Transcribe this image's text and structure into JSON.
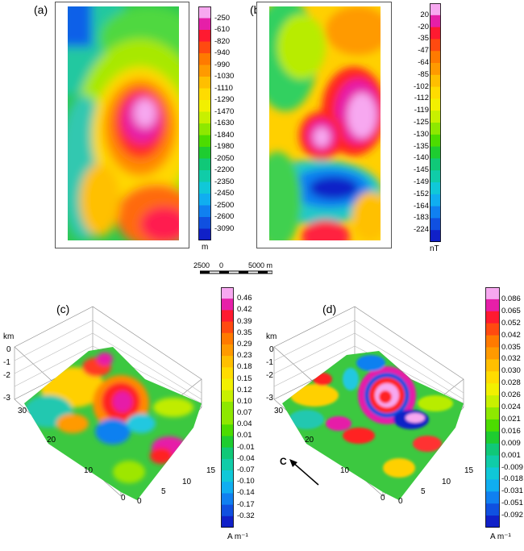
{
  "panels": {
    "a": {
      "label": "(a)",
      "unit": "m",
      "ticks": [
        "-250",
        "-610",
        "-820",
        "-940",
        "-990",
        "-1030",
        "-1110",
        "-1290",
        "-1470",
        "-1630",
        "-1840",
        "-1980",
        "-2050",
        "-2200",
        "-2350",
        "-2450",
        "-2500",
        "-2600",
        "-3090"
      ]
    },
    "b": {
      "label": "(b)",
      "unit": "nT",
      "ticks": [
        "20",
        "-20",
        "-35",
        "-47",
        "-64",
        "-85",
        "-102",
        "-112",
        "-119",
        "-125",
        "-130",
        "-135",
        "-140",
        "-145",
        "-149",
        "-152",
        "-164",
        "-183",
        "-224"
      ]
    },
    "c": {
      "label": "(c)",
      "unit": "A m⁻¹",
      "ticks": [
        "0.46",
        "0.42",
        "0.39",
        "0.35",
        "0.29",
        "0.23",
        "0.18",
        "0.15",
        "0.12",
        "0.10",
        "0.07",
        "0.04",
        "0.01",
        "-0.01",
        "-0.04",
        "-0.07",
        "-0.10",
        "-0.14",
        "-0.17",
        "-0.32"
      ]
    },
    "d": {
      "label": "(d)",
      "unit": "A m⁻¹",
      "ticks": [
        "0.086",
        "0.065",
        "0.052",
        "0.042",
        "0.035",
        "0.032",
        "0.030",
        "0.028",
        "0.026",
        "0.024",
        "0.021",
        "0.016",
        "0.009",
        "0.001",
        "-0.009",
        "-0.018",
        "-0.031",
        "-0.051",
        "-0.092"
      ]
    }
  },
  "scale_bar": {
    "left": "2500",
    "mid": "0",
    "right": "5000 m"
  },
  "axes3d": {
    "z_unit": "km",
    "z_ticks": [
      "0",
      "-1",
      "-2",
      "-3"
    ],
    "y_ticks": [
      "30",
      "20",
      "10",
      "0"
    ],
    "x_ticks": [
      "0",
      "5",
      "10",
      "15"
    ]
  },
  "arrow_label": "C",
  "colors": {
    "ramp": [
      "#f7a8f0",
      "#e61fa8",
      "#ff1a30",
      "#ff4a10",
      "#ff7a00",
      "#ff9a00",
      "#ffbf00",
      "#ffdc00",
      "#f2f000",
      "#c8f000",
      "#8ee800",
      "#4cdc00",
      "#1ecc30",
      "#10c878",
      "#10cca8",
      "#10c8d8",
      "#10aef0",
      "#1080f0",
      "#1050e0",
      "#1020c8"
    ]
  }
}
